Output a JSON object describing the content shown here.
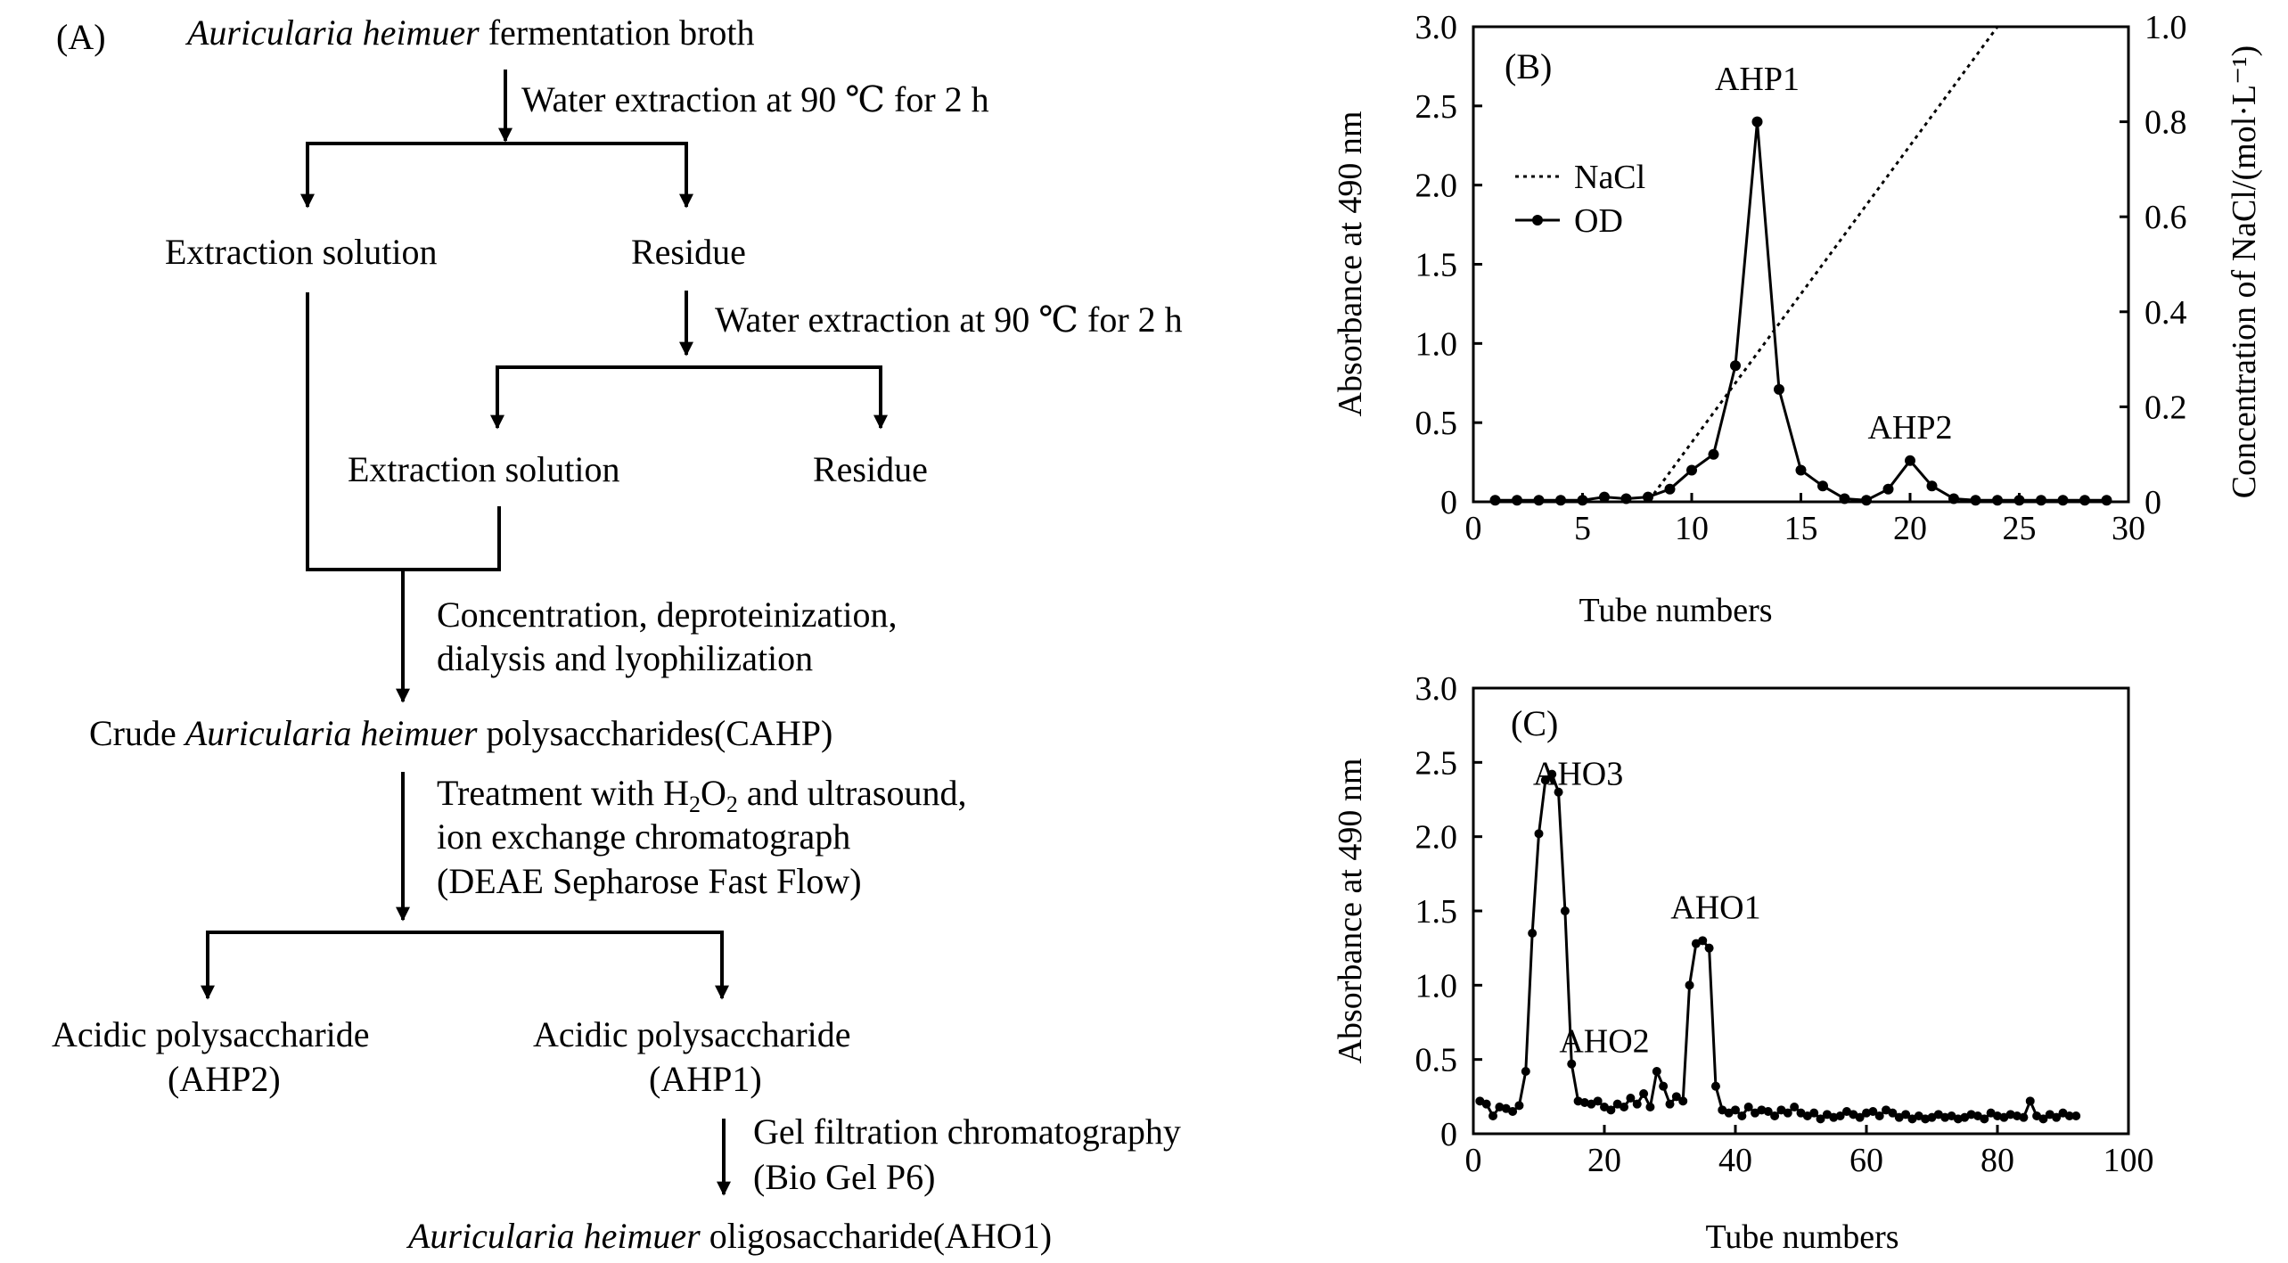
{
  "panel_a": {
    "label": "(A)",
    "step1_italic": "Auricularia heimuer",
    "step1_rest": " fermentation broth",
    "water1": "Water extraction at 90 ℃ for 2 h",
    "extract1": "Extraction solution",
    "residue1": "Residue",
    "water2": "Water extraction at 90 ℃ for 2 h",
    "extract2": "Extraction solution",
    "residue2": "Residue",
    "conc_line1": "Concentration, deproteinization,",
    "conc_line2": "dialysis and lyophilization",
    "crude_pre": "Crude ",
    "crude_italic": "Auricularia heimuer",
    "crude_post": " polysaccharides(CAHP)",
    "treat_line1_pre": "Treatment with H",
    "treat_sub1": "2",
    "treat_mid": "O",
    "treat_sub2": "2",
    "treat_line1_post": " and ultrasound,",
    "treat_line2": "ion exchange chromatograph",
    "treat_line3": "(DEAE Sepharose Fast Flow)",
    "ahp2_line1": "Acidic polysaccharide",
    "ahp2_line2": "(AHP2)",
    "ahp1_line1": "Acidic polysaccharide",
    "ahp1_line2": "(AHP1)",
    "gel_line1": "Gel filtration chromatography",
    "gel_line2": "(Bio Gel P6)",
    "final_italic": "Auricularia heimuer",
    "final_rest": " oligosaccharide(AHO1)"
  },
  "chart_data": [
    {
      "type": "line",
      "panel_label": "(B)",
      "xlabel": "Tube numbers",
      "ylabel": "Absorbance at 490 nm",
      "y2label": "Concentration of NaCl/(mol·L⁻¹)",
      "xlim": [
        0,
        30
      ],
      "ylim": [
        0,
        3.0
      ],
      "y2lim": [
        0,
        1.0
      ],
      "xticks": [
        "0",
        "5",
        "10",
        "15",
        "20",
        "25",
        "30"
      ],
      "yticks": [
        "0",
        "0.5",
        "1.0",
        "1.5",
        "2.0",
        "2.5",
        "3.0"
      ],
      "y2ticks": [
        "0",
        "0.2",
        "0.4",
        "0.6",
        "0.8",
        "1.0"
      ],
      "legend": [
        "NaCl",
        "OD"
      ],
      "legend_position": "top-left",
      "annotations": [
        {
          "text": "AHP1",
          "x": 13,
          "y": 2.6
        },
        {
          "text": "AHP2",
          "x": 20,
          "y": 0.4
        }
      ],
      "series": [
        {
          "name": "OD",
          "style": "solid-dots",
          "x": [
            1,
            2,
            3,
            4,
            5,
            6,
            7,
            8,
            9,
            10,
            11,
            12,
            13,
            14,
            15,
            16,
            17,
            18,
            19,
            20,
            21,
            22,
            23,
            24,
            25,
            26,
            27,
            28,
            29
          ],
          "y": [
            0.01,
            0.01,
            0.01,
            0.01,
            0.01,
            0.03,
            0.02,
            0.03,
            0.08,
            0.2,
            0.3,
            0.86,
            2.4,
            0.71,
            0.2,
            0.1,
            0.02,
            0.01,
            0.08,
            0.26,
            0.1,
            0.02,
            0.01,
            0.01,
            0.01,
            0.01,
            0.01,
            0.01,
            0.01
          ]
        },
        {
          "name": "NaCl",
          "style": "dotted",
          "axis": "right",
          "x": [
            0,
            8,
            24,
            30
          ],
          "y": [
            0,
            0,
            1.0,
            1.0
          ]
        }
      ]
    },
    {
      "type": "line",
      "panel_label": "(C)",
      "xlabel": "Tube numbers",
      "ylabel": "Absorbance at 490 nm",
      "xlim": [
        0,
        100
      ],
      "ylim": [
        0,
        3.0
      ],
      "xticks": [
        "0",
        "20",
        "40",
        "60",
        "80",
        "100"
      ],
      "yticks": [
        "0",
        "0.5",
        "1.0",
        "1.5",
        "2.0",
        "2.5",
        "3.0"
      ],
      "annotations": [
        {
          "text": "AHO3",
          "x": 16,
          "y": 2.35
        },
        {
          "text": "AHO2",
          "x": 20,
          "y": 0.55
        },
        {
          "text": "AHO1",
          "x": 37,
          "y": 1.45
        }
      ],
      "series": [
        {
          "style": "solid-dots",
          "x": [
            1,
            2,
            3,
            4,
            5,
            6,
            7,
            8,
            9,
            10,
            11,
            12,
            13,
            14,
            15,
            16,
            17,
            18,
            19,
            20,
            21,
            22,
            23,
            24,
            25,
            26,
            27,
            28,
            29,
            30,
            31,
            32,
            33,
            34,
            35,
            36,
            37,
            38,
            39,
            40,
            41,
            42,
            43,
            44,
            45,
            46,
            47,
            48,
            49,
            50,
            51,
            52,
            53,
            54,
            55,
            56,
            57,
            58,
            59,
            60,
            61,
            62,
            63,
            64,
            65,
            66,
            67,
            68,
            69,
            70,
            71,
            72,
            73,
            74,
            75,
            76,
            77,
            78,
            79,
            80,
            81,
            82,
            83,
            84,
            85,
            86,
            87,
            88,
            89,
            90,
            91,
            92
          ],
          "y": [
            0.22,
            0.2,
            0.12,
            0.18,
            0.17,
            0.15,
            0.19,
            0.42,
            1.35,
            2.02,
            2.38,
            2.42,
            2.3,
            1.5,
            0.47,
            0.22,
            0.21,
            0.2,
            0.22,
            0.18,
            0.16,
            0.2,
            0.18,
            0.24,
            0.2,
            0.27,
            0.18,
            0.42,
            0.32,
            0.2,
            0.25,
            0.22,
            1.0,
            1.28,
            1.3,
            1.25,
            0.32,
            0.16,
            0.14,
            0.16,
            0.12,
            0.18,
            0.14,
            0.16,
            0.15,
            0.12,
            0.16,
            0.14,
            0.18,
            0.14,
            0.12,
            0.14,
            0.1,
            0.13,
            0.11,
            0.12,
            0.15,
            0.13,
            0.11,
            0.14,
            0.15,
            0.12,
            0.16,
            0.14,
            0.11,
            0.13,
            0.1,
            0.12,
            0.1,
            0.11,
            0.13,
            0.11,
            0.12,
            0.1,
            0.11,
            0.13,
            0.12,
            0.1,
            0.14,
            0.12,
            0.11,
            0.13,
            0.12,
            0.11,
            0.22,
            0.12,
            0.1,
            0.13,
            0.11,
            0.14,
            0.12,
            0.12
          ]
        }
      ]
    }
  ]
}
